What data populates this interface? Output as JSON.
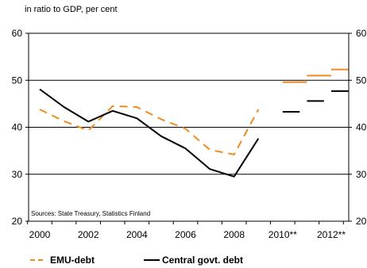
{
  "chart_data": {
    "type": "line",
    "subtitle": "in ratio to GDP, per cent",
    "source": "Sources: State Treasury,  Statistics Finland",
    "x_tick_labels": [
      "2000",
      "2002",
      "2004",
      "2006",
      "2008",
      "2010**",
      "2012**"
    ],
    "y_ticks": [
      20,
      30,
      40,
      50,
      60
    ],
    "ylim": [
      20,
      60
    ],
    "grid": "horizontal",
    "legend_position": "bottom",
    "colors": {
      "emu": "#f08a1e",
      "central": "#000000",
      "grid": "#000000"
    },
    "series": [
      {
        "name": "EMU-debt",
        "style": "dashed",
        "color": "#f08a1e",
        "x": [
          2000,
          2001,
          2002,
          2003,
          2004,
          2005,
          2006,
          2007,
          2008,
          2009
        ],
        "y": [
          43.8,
          41.3,
          39.3,
          44.5,
          44.3,
          41.7,
          39.7,
          35.2,
          34.2,
          43.8
        ],
        "projections": [
          {
            "x_from": 2010,
            "x_to": 2011,
            "y": 49.6
          },
          {
            "x_from": 2011,
            "x_to": 2012,
            "y": 51.0
          },
          {
            "x_from": 2012,
            "x_to": 2012.7,
            "y": 52.3
          }
        ]
      },
      {
        "name": "Central govt. debt",
        "style": "solid",
        "color": "#000000",
        "x": [
          2000,
          2001,
          2002,
          2003,
          2004,
          2005,
          2006,
          2007,
          2008,
          2009
        ],
        "y": [
          48.1,
          44.3,
          41.2,
          43.5,
          41.9,
          38.1,
          35.5,
          31.1,
          29.5,
          37.6
        ],
        "projections": [
          {
            "x_from": 2010,
            "x_to": 2010.7,
            "y": 43.3
          },
          {
            "x_from": 2011,
            "x_to": 2011.7,
            "y": 45.6
          },
          {
            "x_from": 2012,
            "x_to": 2012.7,
            "y": 47.7
          }
        ]
      }
    ]
  }
}
